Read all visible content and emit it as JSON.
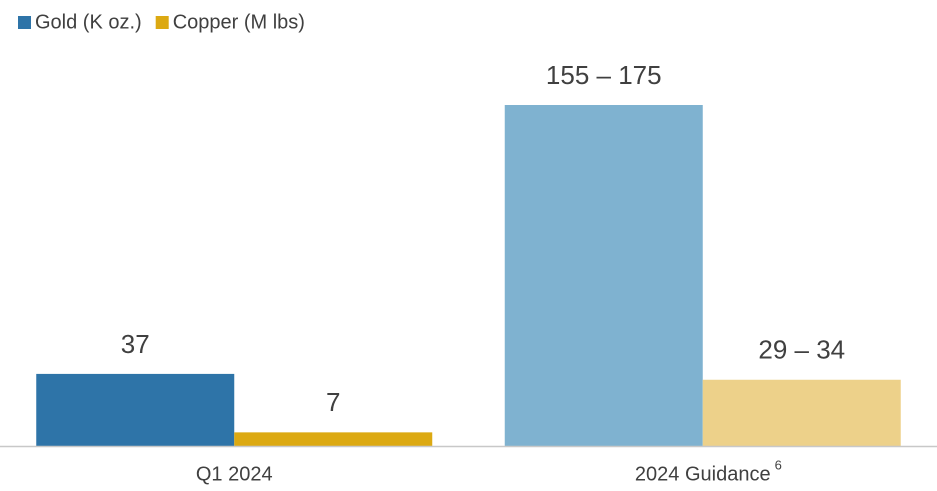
{
  "chart_data": {
    "type": "bar",
    "categories": [
      "Q1 2024",
      "2024 Guidance"
    ],
    "category_footnotes": [
      null,
      "6"
    ],
    "series": [
      {
        "name": "Gold (K oz.)",
        "color": "#2e74a8",
        "colors": [
          "#2e74a8",
          "#7fb2d0"
        ],
        "values": [
          37,
          175
        ],
        "value_labels": [
          "37",
          "155 – 175"
        ]
      },
      {
        "name": "Copper (M lbs)",
        "color": "#dca912",
        "colors": [
          "#dca912",
          "#edd18a"
        ],
        "values": [
          7,
          34
        ],
        "value_labels": [
          "7",
          "29 – 34"
        ]
      }
    ],
    "ylim": [
      0,
      175
    ],
    "legend": "top-left"
  }
}
